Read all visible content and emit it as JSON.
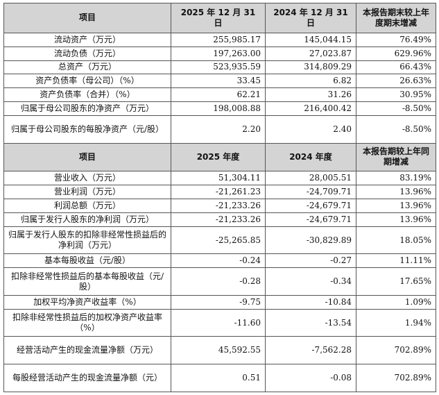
{
  "table": {
    "section1": {
      "headers": [
        "项目",
        "2025 年 12 月 31 日",
        "2024 年 12 月 31 日",
        "本报告期末较上年度期末增减"
      ],
      "rows": [
        [
          "流动资产（万元）",
          "255,985.17",
          "145,044.15",
          "76.49%"
        ],
        [
          "流动负债（万元）",
          "197,263.00",
          "27,023.87",
          "629.96%"
        ],
        [
          "总资产（万元）",
          "523,935.59",
          "314,809.29",
          "66.43%"
        ],
        [
          "资产负债率（母公司）（%）",
          "33.45",
          "6.82",
          "26.63%"
        ],
        [
          "资产负债率（合并）（%）",
          "62.21",
          "31.26",
          "30.95%"
        ],
        [
          "归属于母公司股东的净资产（万元）",
          "198,008.88",
          "216,400.42",
          "-8.50%"
        ],
        [
          "归属于母公司股东的每股净资产（元/股）",
          "2.20",
          "2.40",
          "-8.50%"
        ]
      ]
    },
    "section2": {
      "headers": [
        "项目",
        "2025 年度",
        "2024 年度",
        "本报告期较上年同期增减"
      ],
      "rows": [
        [
          "营业收入（万元）",
          "51,304.11",
          "28,005.51",
          "83.19%"
        ],
        [
          "营业利润（万元）",
          "-21,261.23",
          "-24,709.71",
          "13.96%"
        ],
        [
          "利润总额（万元）",
          "-21,233.26",
          "-24,679.71",
          "13.96%"
        ],
        [
          "归属于发行人股东的净利润（万元）",
          "-21,233.26",
          "-24,679.71",
          "13.96%"
        ],
        [
          "归属于发行人股东的扣除非经常性损益后的净利润（万元）",
          "-25,265.85",
          "-30,829.89",
          "18.05%"
        ],
        [
          "基本每股收益（元/股）",
          "-0.24",
          "-0.27",
          "11.11%"
        ],
        [
          "扣除非经常性损益后的基本每股收益（元/股）",
          "-0.28",
          "-0.34",
          "17.65%"
        ],
        [
          "加权平均净资产收益率（%）",
          "-9.75",
          "-10.84",
          "1.09%"
        ],
        [
          "扣除非经常性损益后的加权净资产收益率（%）",
          "-11.60",
          "-13.54",
          "1.94%"
        ],
        [
          "经营活动产生的现金流量净额（万元）",
          "45,592.55",
          "-7,562.28",
          "702.89%"
        ],
        [
          "每股经营活动产生的现金流量净额（元）",
          "0.51",
          "-0.08",
          "702.89%"
        ]
      ]
    }
  }
}
